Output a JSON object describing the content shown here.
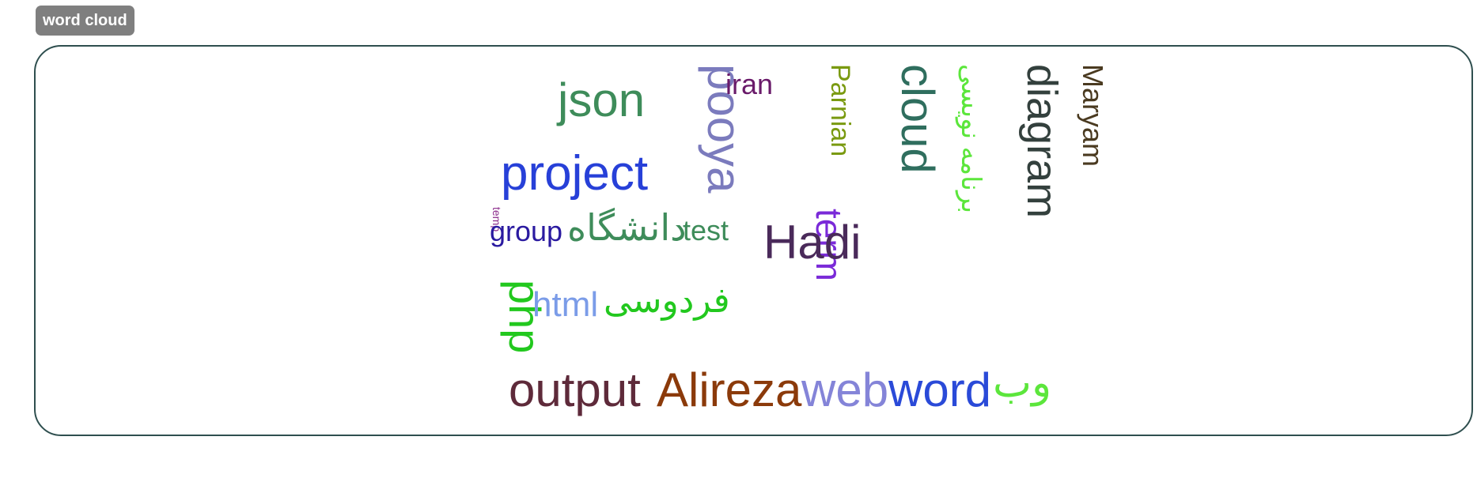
{
  "header": {
    "badge_label": "word cloud"
  },
  "word_cloud": {
    "words": [
      {
        "id": "json",
        "text": "json",
        "color": "#3e8c5a"
      },
      {
        "id": "pooya",
        "text": "pooya",
        "color": "#7b7bbd"
      },
      {
        "id": "iran",
        "text": "iran",
        "color": "#6a1b6a"
      },
      {
        "id": "parnian",
        "text": "Parnian",
        "color": "#7a9a10"
      },
      {
        "id": "cloud",
        "text": "cloud",
        "color": "#2f6e5e"
      },
      {
        "id": "barnameh-nevisi",
        "text": "برنامه نویسی",
        "color": "#5ce63c"
      },
      {
        "id": "diagram",
        "text": "diagram",
        "color": "#33403d"
      },
      {
        "id": "maryam",
        "text": "Maryam",
        "color": "#4a3a20"
      },
      {
        "id": "project",
        "text": "project",
        "color": "#2740d8"
      },
      {
        "id": "temp",
        "text": "temp",
        "color": "#8a2a8a"
      },
      {
        "id": "group",
        "text": "group",
        "color": "#2a1aa0"
      },
      {
        "id": "daneshgah",
        "text": "دانشگاه",
        "color": "#3e8c5a"
      },
      {
        "id": "test",
        "text": "test",
        "color": "#3e8c5a"
      },
      {
        "id": "term",
        "text": "term",
        "color": "#7a2ad8"
      },
      {
        "id": "hadi",
        "text": "Hadi",
        "color": "#4a2a5a"
      },
      {
        "id": "php",
        "text": "php",
        "color": "#22c81e"
      },
      {
        "id": "html",
        "text": "html",
        "color": "#7b9ce8"
      },
      {
        "id": "ferdowsi",
        "text": "فردوسی",
        "color": "#22c81e"
      },
      {
        "id": "output",
        "text": "output",
        "color": "#5e2a3a"
      },
      {
        "id": "alireza",
        "text": "Alireza",
        "color": "#8b3a0a"
      },
      {
        "id": "web",
        "text": "web",
        "color": "#8484d8"
      },
      {
        "id": "word",
        "text": "word",
        "color": "#2a4ad8"
      },
      {
        "id": "vab",
        "text": "وب",
        "color": "#5ce63c"
      }
    ]
  }
}
